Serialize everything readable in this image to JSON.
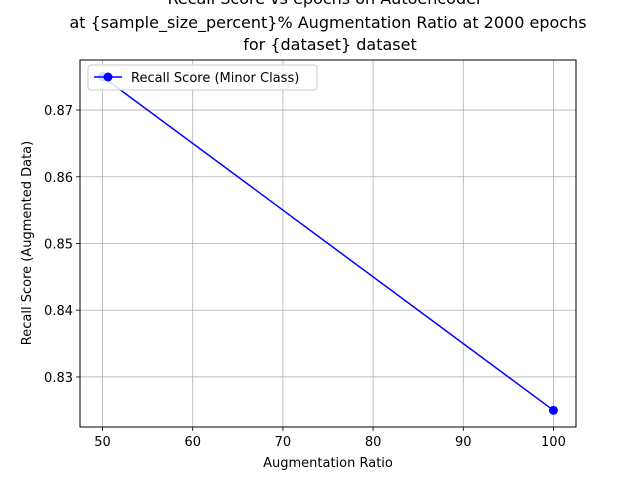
{
  "chart_data": {
    "type": "line",
    "title_lines": [
      "Recall Score vs epochs on Autoencoder",
      "at {sample_size_percent}% Augmentation Ratio at 2000 epochs",
      "for {dataset} dataset"
    ],
    "xlabel": "Augmentation Ratio",
    "ylabel": "Recall Score (Augmented Data)",
    "x_ticks": [
      "50",
      "60",
      "70",
      "80",
      "90",
      "100"
    ],
    "y_ticks": [
      "0.83",
      "0.84",
      "0.85",
      "0.86",
      "0.87"
    ],
    "xlim": [
      47.5,
      102.5
    ],
    "ylim": [
      0.8225,
      0.8775
    ],
    "grid": true,
    "legend_placement": "upper-left",
    "series": [
      {
        "name": "Recall Score (Minor Class)",
        "color": "#0000ff",
        "marker": "circle",
        "x": [
          50,
          100
        ],
        "y": [
          0.875,
          0.825
        ]
      }
    ]
  }
}
